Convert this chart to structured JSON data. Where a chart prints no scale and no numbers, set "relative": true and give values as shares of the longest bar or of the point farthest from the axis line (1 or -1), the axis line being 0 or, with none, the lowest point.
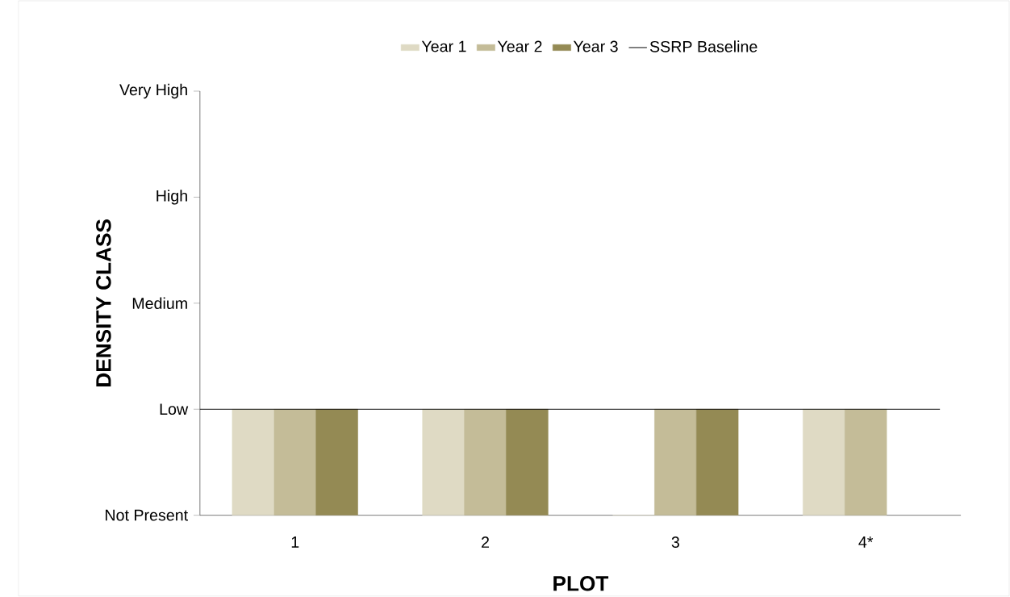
{
  "chart_data": {
    "type": "bar",
    "xlabel": "PLOT",
    "ylabel": "DENSITY CLASS",
    "categories": [
      "1",
      "2",
      "3",
      "4*"
    ],
    "series": [
      {
        "name": "Year 1",
        "color": "#dfdac4",
        "values": [
          1,
          1,
          0,
          1
        ]
      },
      {
        "name": "Year 2",
        "color": "#c4bc98",
        "values": [
          1,
          1,
          1,
          1
        ]
      },
      {
        "name": "Year 3",
        "color": "#948a54",
        "values": [
          1,
          1,
          1,
          null
        ]
      }
    ],
    "annotations": [
      "Not Present",
      "Low",
      "Medium",
      "High",
      "Very High"
    ],
    "ref_lines": [
      {
        "axis": "y",
        "value": 1,
        "label": "SSRP Baseline",
        "color": "#000000"
      }
    ],
    "legend": "top",
    "relative": true
  }
}
